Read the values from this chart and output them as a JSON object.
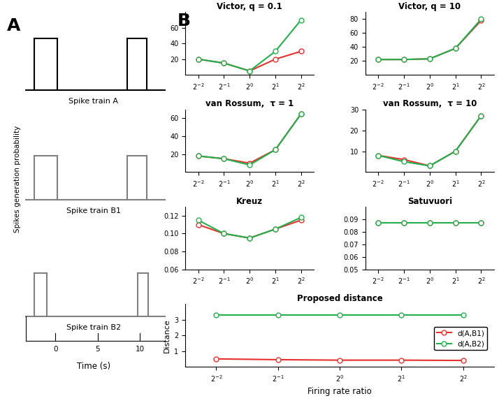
{
  "x_ticks": [
    "2^{-2}",
    "2^{-1}",
    "2^{0}",
    "2^{1}",
    "2^{2}"
  ],
  "x_vals": [
    -2,
    -1,
    0,
    1,
    2
  ],
  "victor_01_B1": [
    20,
    15,
    5,
    20,
    30
  ],
  "victor_01_B2": [
    20,
    15,
    5,
    30,
    70
  ],
  "victor_01_ylim": [
    0,
    80
  ],
  "victor_01_yticks": [
    20,
    40,
    60
  ],
  "victor_01_title": "Victor, q = 0.1",
  "victor_10_B1": [
    22,
    22,
    23,
    38,
    78
  ],
  "victor_10_B2": [
    22,
    22,
    23,
    38,
    80
  ],
  "victor_10_ylim": [
    0,
    90
  ],
  "victor_10_yticks": [
    20,
    40,
    60,
    80
  ],
  "victor_10_title": "Victor, q = 10",
  "vanrossum_1_B1": [
    18,
    15,
    10,
    25,
    65
  ],
  "vanrossum_1_B2": [
    18,
    15,
    8,
    25,
    65
  ],
  "vanrossum_1_ylim": [
    0,
    70
  ],
  "vanrossum_1_yticks": [
    20,
    40,
    60
  ],
  "vanrossum_1_title": "van Rossum,  τ = 1",
  "vanrossum_10_B1": [
    8,
    6,
    3,
    10,
    27
  ],
  "vanrossum_10_B2": [
    8,
    5,
    3,
    10,
    27
  ],
  "vanrossum_10_ylim": [
    0,
    30
  ],
  "vanrossum_10_yticks": [
    10,
    20,
    30
  ],
  "vanrossum_10_title": "van Rossum,  τ = 10",
  "kreuz_B1": [
    0.11,
    0.1,
    0.095,
    0.105,
    0.115
  ],
  "kreuz_B2": [
    0.115,
    0.1,
    0.095,
    0.105,
    0.118
  ],
  "kreuz_ylim": [
    0.06,
    0.13
  ],
  "kreuz_yticks": [
    0.06,
    0.08,
    0.1,
    0.12
  ],
  "kreuz_title": "Kreuz",
  "satuvuori_B1": [
    0.087,
    0.087,
    0.087,
    0.087,
    0.087
  ],
  "satuvuori_B2": [
    0.087,
    0.087,
    0.087,
    0.087,
    0.087
  ],
  "satuvuori_ylim": [
    0.05,
    0.1
  ],
  "satuvuori_yticks": [
    0.05,
    0.06,
    0.07,
    0.08,
    0.09
  ],
  "satuvuori_title": "Satuvuori",
  "proposed_B1": [
    0.5,
    0.45,
    0.42,
    0.42,
    0.4
  ],
  "proposed_B2": [
    3.3,
    3.3,
    3.3,
    3.3,
    3.3
  ],
  "proposed_ylim": [
    0,
    4
  ],
  "proposed_yticks": [
    1,
    2,
    3
  ],
  "proposed_title": "Proposed distance",
  "proposed_ylabel": "Distance",
  "proposed_xlabel": "Firing rate ratio",
  "color_B1": "#e8302e",
  "color_B2": "#22b14c",
  "marker": "o",
  "markersize": 5,
  "linewidth": 1.5
}
